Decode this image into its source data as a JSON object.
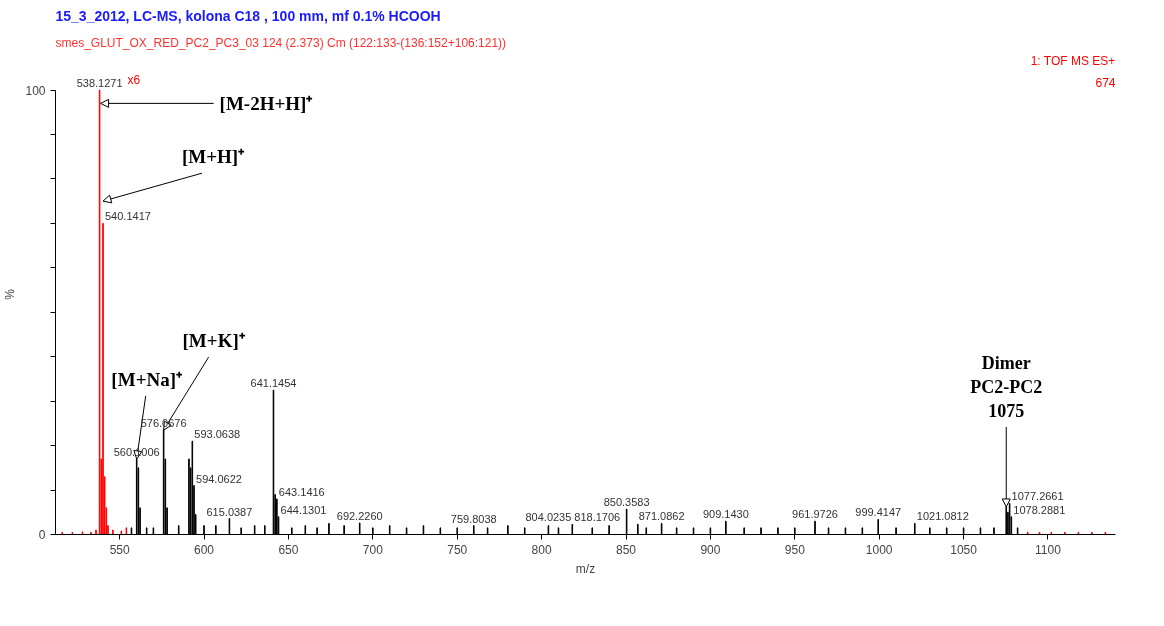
{
  "chart_data": {
    "type": "bar",
    "title": "15_3_2012, LC-MS, kolona C18 , 100 mm, mf 0.1% HCOOH",
    "subtitle": "smes_GLUT_OX_RED_PC2_PC3_03 124 (2.373) Cm (122:133-(136:152+106:121))",
    "xlabel": "m/z",
    "ylabel": "%",
    "xlim": [
      512,
      1140
    ],
    "xticks": [
      550,
      600,
      650,
      700,
      750,
      800,
      850,
      900,
      950,
      1000,
      1050,
      1100
    ],
    "ylim": [
      0,
      100
    ],
    "yticks": [
      0,
      {
        "value": 10,
        "label": null
      },
      {
        "value": 20,
        "label": null
      },
      {
        "value": 30,
        "label": null
      },
      {
        "value": 40,
        "label": null
      },
      {
        "value": 50,
        "label": null
      },
      {
        "value": 60,
        "label": null
      },
      {
        "value": 70,
        "label": null
      },
      {
        "value": 80,
        "label": null
      },
      {
        "value": 90,
        "label": null
      },
      100
    ],
    "grid": false,
    "series": [
      {
        "color": "#ff0000",
        "x": [
          516,
          522,
          528,
          533,
          536,
          538.1271,
          539.13,
          540.1417,
          541.14,
          542.1,
          543.1,
          546,
          551,
          554,
          1088,
          1095,
          1102,
          1110,
          1118,
          1126,
          1134
        ],
        "values": [
          0.5,
          0.5,
          0.6,
          0.5,
          1,
          100,
          17,
          70,
          13,
          6,
          2,
          1,
          0.8,
          1.5,
          0.5,
          0.5,
          0.5,
          0.5,
          0.5,
          0.5,
          0.5
        ]
      },
      {
        "color": "#000000",
        "x": [
          557,
          560.1006,
          561.1,
          562.1,
          566,
          570,
          576.0676,
          577.07,
          578.1,
          585,
          591.06,
          592.06,
          593.0638,
          594.0622,
          595.06,
          600,
          607,
          615.0387,
          622,
          630,
          636,
          641.1454,
          642.15,
          643.1416,
          644.1301,
          652,
          660,
          667,
          674,
          683,
          692.226,
          700,
          710,
          720,
          730,
          740,
          750,
          759.8038,
          768,
          780,
          790,
          804.0235,
          810,
          818.1706,
          830,
          840,
          850.3583,
          857,
          862,
          871.0862,
          880,
          890,
          900,
          909.143,
          920,
          930,
          940,
          950,
          961.9726,
          970,
          980,
          990,
          999.4147,
          1010,
          1021.0812,
          1030,
          1040,
          1050,
          1060,
          1068,
          1075.27,
          1076.27,
          1077.2661,
          1078.2881,
          1082
        ],
        "values": [
          1.5,
          17,
          15,
          6,
          1.5,
          1.5,
          23.5,
          17,
          6,
          2,
          17,
          15,
          21,
          11,
          4.5,
          2,
          2,
          3.6,
          1.5,
          2,
          2,
          32.5,
          9,
          8,
          4,
          1.5,
          2,
          1.5,
          2.5,
          2,
          2.6,
          1.5,
          2,
          1.5,
          2,
          1.5,
          1.5,
          2,
          1.5,
          2,
          1.5,
          2,
          1.5,
          2.3,
          1.5,
          2,
          5.7,
          2.3,
          1.5,
          2.5,
          1.5,
          1.5,
          1.5,
          3,
          1.5,
          1.5,
          1.5,
          1.5,
          3,
          1.5,
          1.5,
          1.5,
          3.4,
          1.5,
          2.5,
          1.5,
          1.5,
          1.5,
          1.5,
          1.5,
          6.2,
          5,
          7,
          4,
          1.5
        ]
      }
    ],
    "annotations": [
      {
        "text": "[M-2H+H]⁺",
        "x": 538.1271,
        "y": 97
      },
      {
        "text": "[M+H]⁺",
        "x": 540.1417,
        "y": 75
      },
      {
        "text": "[M+Na]⁺",
        "x": 560.1006,
        "y": 17
      },
      {
        "text": "[M+K]⁺",
        "x": 576.0676,
        "y": 23.5
      },
      {
        "text": "Dimer\nPC2-PC2\n1075",
        "x": 1075.27,
        "y": 6.2
      },
      {
        "text": "538.1271",
        "x": 538.1271,
        "y": 100
      },
      {
        "text": "540.1417",
        "x": 540.1417,
        "y": 70
      },
      {
        "text": "560.1006",
        "x": 560.1006,
        "y": 17
      },
      {
        "text": "576.0676",
        "x": 576.0676,
        "y": 23.5
      },
      {
        "text": "593.0638",
        "x": 593.0638,
        "y": 21
      },
      {
        "text": "594.0622",
        "x": 594.0622,
        "y": 11
      },
      {
        "text": "615.0387",
        "x": 615.0387,
        "y": 3.6
      },
      {
        "text": "641.1454",
        "x": 641.1454,
        "y": 32.5
      },
      {
        "text": "643.1416",
        "x": 643.1416,
        "y": 8
      },
      {
        "text": "644.1301",
        "x": 644.1301,
        "y": 4
      },
      {
        "text": "692.2260",
        "x": 692.226,
        "y": 2.6
      },
      {
        "text": "759.8038",
        "x": 759.8038,
        "y": 2
      },
      {
        "text": "804.0235",
        "x": 804.0235,
        "y": 2
      },
      {
        "text": "818.1706",
        "x": 818.1706,
        "y": 2.3
      },
      {
        "text": "850.3583",
        "x": 850.3583,
        "y": 5.7
      },
      {
        "text": "871.0862",
        "x": 871.0862,
        "y": 2.5
      },
      {
        "text": "909.1430",
        "x": 909.143,
        "y": 3
      },
      {
        "text": "961.9726",
        "x": 961.9726,
        "y": 3
      },
      {
        "text": "999.4147",
        "x": 999.4147,
        "y": 3.4
      },
      {
        "text": "1021.0812",
        "x": 1021.0812,
        "y": 2.5
      },
      {
        "text": "1077.2661",
        "x": 1077.2661,
        "y": 7
      },
      {
        "text": "1078.2881",
        "x": 1078.2881,
        "y": 4
      },
      "x6",
      "1: TOF MS ES+",
      "674"
    ]
  }
}
